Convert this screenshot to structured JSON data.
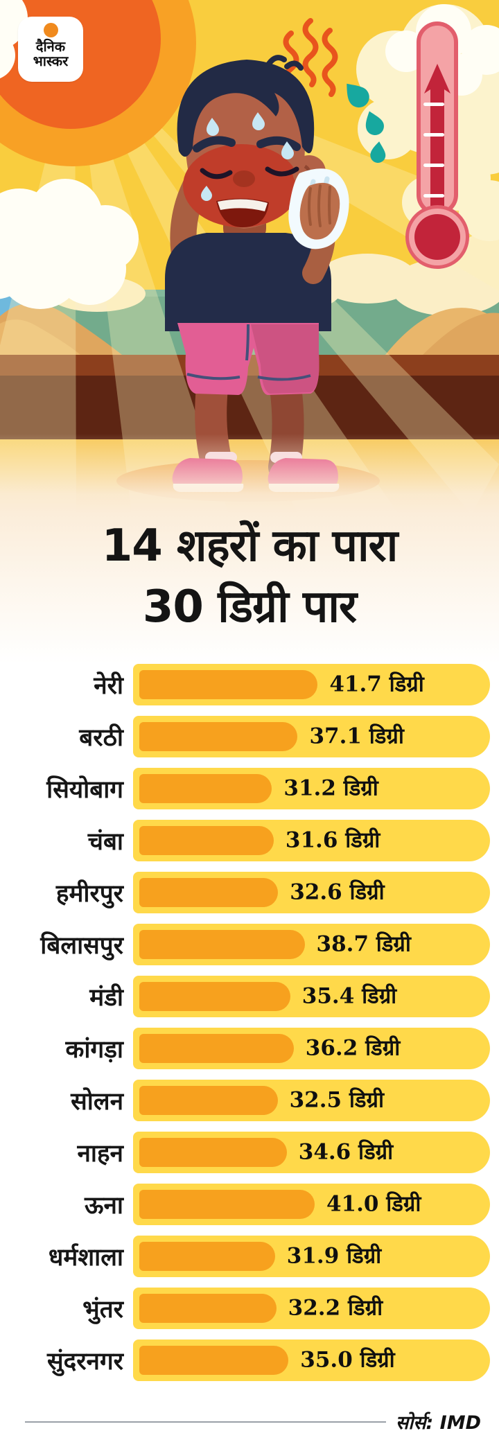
{
  "brand": {
    "name_line1": "दैनिक",
    "name_line2": "भास्कर"
  },
  "title": {
    "line1": "14 शहरों का पारा",
    "line2": "30 डिग्री पार"
  },
  "chart_data": {
    "type": "bar",
    "orientation": "horizontal",
    "title": "14 शहरों का पारा 30 डिग्री पार",
    "unit": "डिग्री",
    "categories": [
      "नेरी",
      "बरठी",
      "सियोबाग",
      "चंबा",
      "हमीरपुर",
      "बिलासपुर",
      "मंडी",
      "कांगड़ा",
      "सोलन",
      "नाहन",
      "ऊना",
      "धर्मशाला",
      "भुंतर",
      "सुंदरनगर"
    ],
    "values": [
      41.7,
      37.1,
      31.2,
      31.6,
      32.6,
      38.7,
      35.4,
      36.2,
      32.5,
      34.6,
      41.0,
      31.9,
      32.2,
      35.0
    ],
    "value_labels": [
      "41.7",
      "37.1",
      "31.2",
      "31.6",
      "32.6",
      "38.7",
      "35.4",
      "36.2",
      "32.5",
      "34.6",
      "41.0",
      "31.9",
      "32.2",
      "35.0"
    ],
    "axes_visible": false,
    "grid": false,
    "legend_position": "none",
    "colors": {
      "bar_track": "#FFD94A",
      "bar_fill": "#F7A11E",
      "label_text": "#161616",
      "value_text": "#101010"
    }
  },
  "footer": {
    "source": "सोर्स: IMD"
  },
  "illustration": {
    "icons": [
      "sun-icon",
      "thermometer-icon",
      "heat-waves-icon",
      "sweat-drops-icon",
      "cloud-icon",
      "sweating-boy-illustration",
      "beach-scene"
    ],
    "colors": {
      "sky": "#F9CD3E",
      "sun_outer": "#F8A125",
      "sun_inner": "#EF6522",
      "sea": "#73AB8C",
      "boardwalk_dark": "#5D2513",
      "thermometer_mercury": "#C2243A"
    }
  }
}
